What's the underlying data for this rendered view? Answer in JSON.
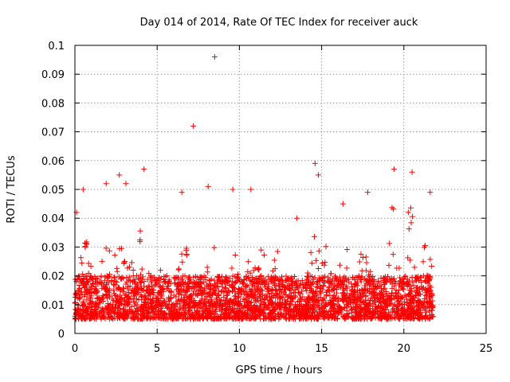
{
  "chart_data": {
    "type": "scatter",
    "title": "Day 014 of 2014, Rate Of TEC Index for receiver auck",
    "xlabel": "GPS time / hours",
    "ylabel": "ROTI / TECUs",
    "xlim": [
      0,
      25
    ],
    "ylim": [
      0,
      0.1
    ],
    "xticks": [
      "0",
      "5",
      "10",
      "15",
      "20",
      "25"
    ],
    "yticks": [
      "0",
      "0.01",
      "0.02",
      "0.03",
      "0.04",
      "0.05",
      "0.06",
      "0.07",
      "0.08",
      "0.09",
      "0.1"
    ],
    "grid": true,
    "marker": "plus",
    "color": "#ff0000",
    "x_range_of_data": [
      0,
      21.8
    ],
    "typical_band": [
      0.005,
      0.02
    ],
    "outliers": [
      {
        "x": 8.5,
        "y": 0.096
      },
      {
        "x": 7.2,
        "y": 0.072
      },
      {
        "x": 14.6,
        "y": 0.059
      },
      {
        "x": 4.2,
        "y": 0.057
      },
      {
        "x": 19.4,
        "y": 0.057
      },
      {
        "x": 2.7,
        "y": 0.055
      },
      {
        "x": 20.5,
        "y": 0.056
      },
      {
        "x": 1.9,
        "y": 0.052
      },
      {
        "x": 3.1,
        "y": 0.052
      },
      {
        "x": 14.8,
        "y": 0.055
      },
      {
        "x": 0.5,
        "y": 0.05
      },
      {
        "x": 8.1,
        "y": 0.051
      },
      {
        "x": 10.7,
        "y": 0.05
      },
      {
        "x": 9.6,
        "y": 0.05
      },
      {
        "x": 17.8,
        "y": 0.049
      },
      {
        "x": 21.6,
        "y": 0.049
      },
      {
        "x": 6.5,
        "y": 0.049
      },
      {
        "x": 0.1,
        "y": 0.042
      },
      {
        "x": 16.3,
        "y": 0.045
      },
      {
        "x": 13.5,
        "y": 0.04
      }
    ]
  }
}
